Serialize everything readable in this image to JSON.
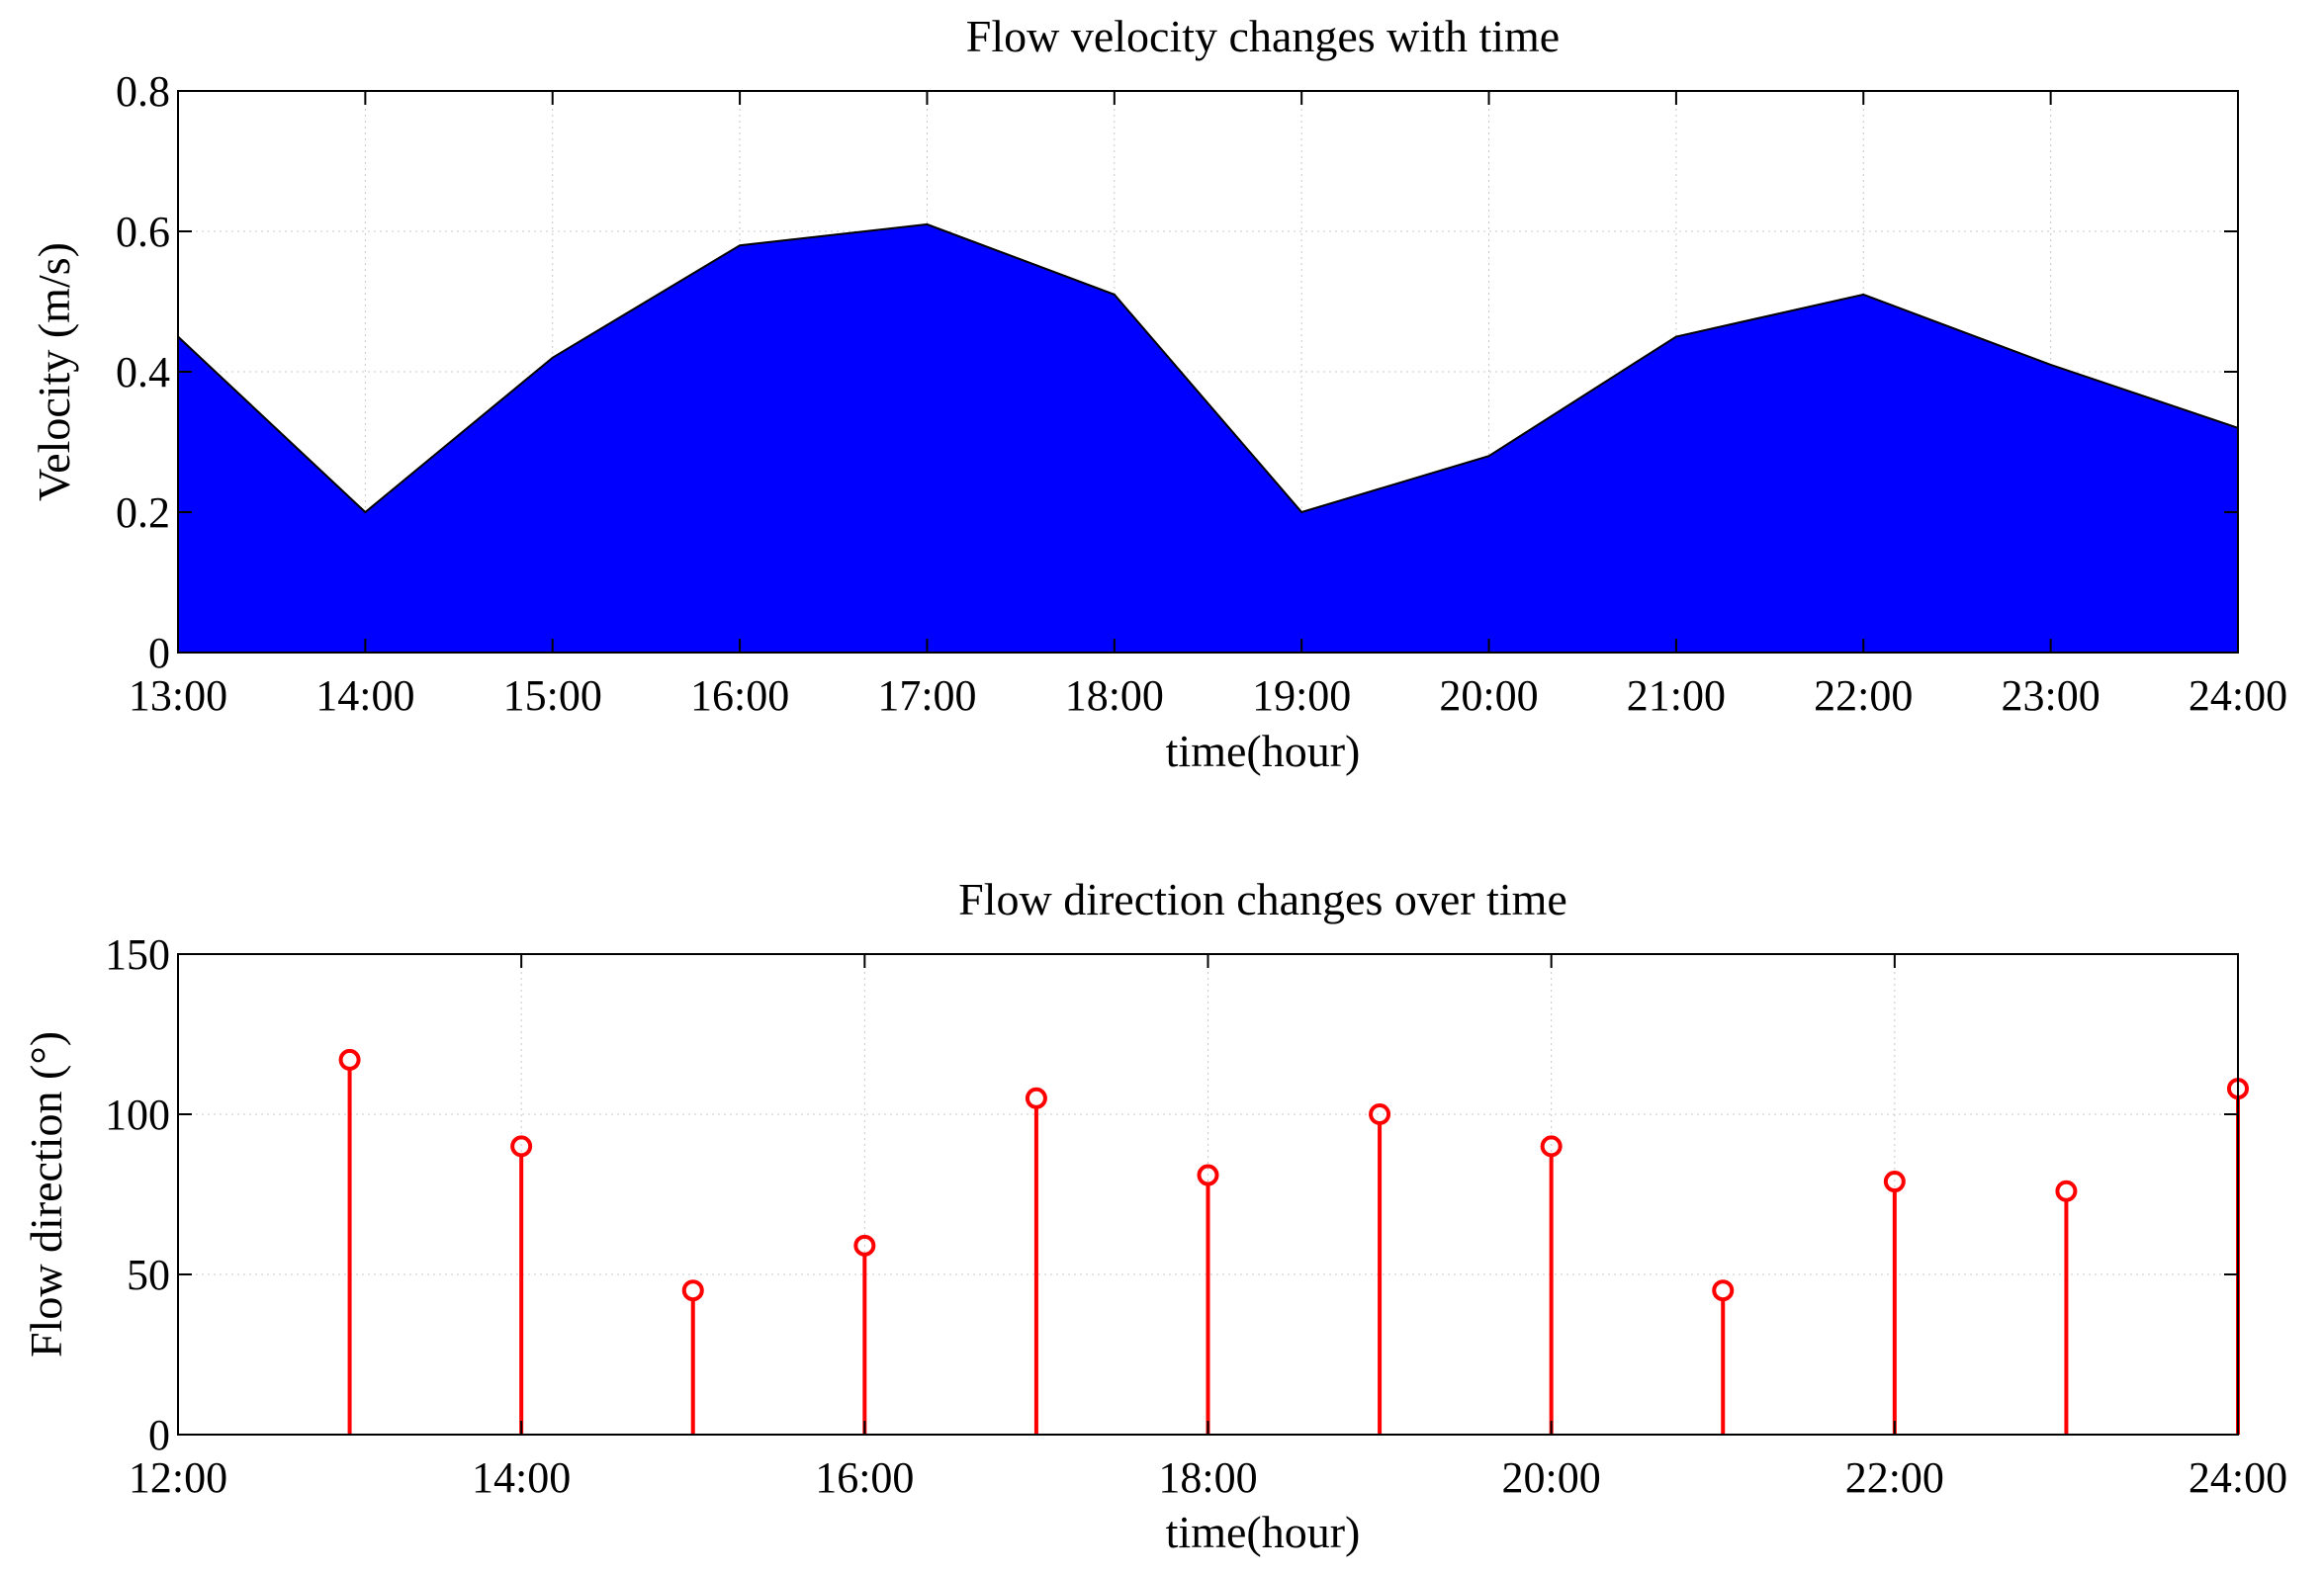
{
  "chart_data": [
    {
      "type": "area",
      "title": "Flow velocity changes with time",
      "xlabel": "time(hour)",
      "ylabel": "Velocity (m/s)",
      "x_ticks": [
        "13:00",
        "14:00",
        "15:00",
        "16:00",
        "17:00",
        "18:00",
        "19:00",
        "20:00",
        "21:00",
        "22:00",
        "23:00",
        "24:00"
      ],
      "y_ticks": [
        "0",
        "0.2",
        "0.4",
        "0.6",
        "0.8"
      ],
      "ylim": [
        0,
        0.8
      ],
      "xlim": [
        "13:00",
        "24:00"
      ],
      "grid": true,
      "x": [
        "13:00",
        "14:00",
        "15:00",
        "16:00",
        "17:00",
        "18:00",
        "19:00",
        "20:00",
        "21:00",
        "22:00",
        "23:00",
        "24:00"
      ],
      "values": [
        0.45,
        0.2,
        0.42,
        0.58,
        0.61,
        0.51,
        0.2,
        0.28,
        0.45,
        0.51,
        0.41,
        0.32
      ],
      "fill_color": "#0000ff",
      "line_color": "#000000"
    },
    {
      "type": "scatter",
      "style": "stem",
      "title": "Flow direction changes over time",
      "xlabel": "time(hour)",
      "ylabel": "Flow direction (°)",
      "x_ticks": [
        "12:00",
        "14:00",
        "16:00",
        "18:00",
        "20:00",
        "22:00",
        "24:00"
      ],
      "y_ticks": [
        "0",
        "50",
        "100",
        "150"
      ],
      "ylim": [
        0,
        150
      ],
      "xlim": [
        "12:00",
        "24:00"
      ],
      "grid": true,
      "x": [
        "13:00",
        "14:00",
        "15:00",
        "16:00",
        "17:00",
        "18:00",
        "19:00",
        "20:00",
        "21:00",
        "22:00",
        "23:00",
        "24:00"
      ],
      "values": [
        117,
        90,
        45,
        59,
        105,
        81,
        100,
        90,
        45,
        79,
        76,
        108
      ],
      "marker": "circle",
      "color": "#ff0000"
    }
  ]
}
